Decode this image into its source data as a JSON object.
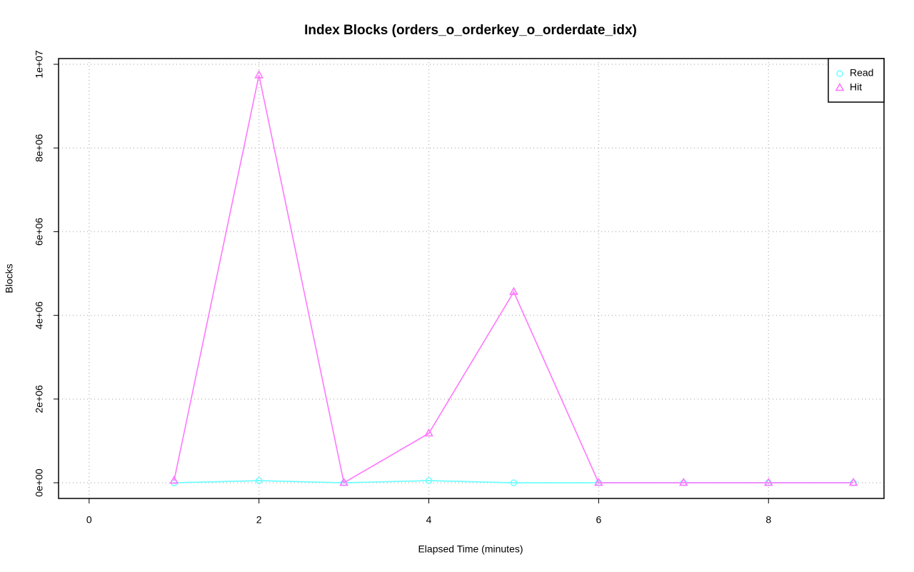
{
  "chart_data": {
    "type": "line",
    "title": "Index Blocks (orders_o_orderkey_o_orderdate_idx)",
    "x_label": "Elapsed Time (minutes)",
    "y_label": "Blocks",
    "x": [
      1,
      2,
      3,
      4,
      5,
      6,
      7,
      8,
      9
    ],
    "series": [
      {
        "name": "Read",
        "color": "#66ffff",
        "marker": "circle",
        "values": [
          0,
          50000,
          0,
          50000,
          0,
          0,
          0,
          0,
          0
        ]
      },
      {
        "name": "Hit",
        "color": "#ff77ff",
        "marker": "triangle",
        "values": [
          50000,
          9740000,
          0,
          1180000,
          4560000,
          0,
          0,
          0,
          0
        ]
      }
    ],
    "xlim": [
      -0.36,
      9.36
    ],
    "xticks": [
      0,
      2,
      4,
      6,
      8
    ],
    "ylim": [
      -375000,
      10137000
    ],
    "yticks": [
      {
        "value": 0,
        "label": "0e+00"
      },
      {
        "value": 2000000,
        "label": "2e+06"
      },
      {
        "value": 4000000,
        "label": "4e+06"
      },
      {
        "value": 6000000,
        "label": "6e+06"
      },
      {
        "value": 8000000,
        "label": "8e+06"
      },
      {
        "value": 10000000,
        "label": "1e+07"
      }
    ],
    "grid": true,
    "legend": "top-right"
  }
}
